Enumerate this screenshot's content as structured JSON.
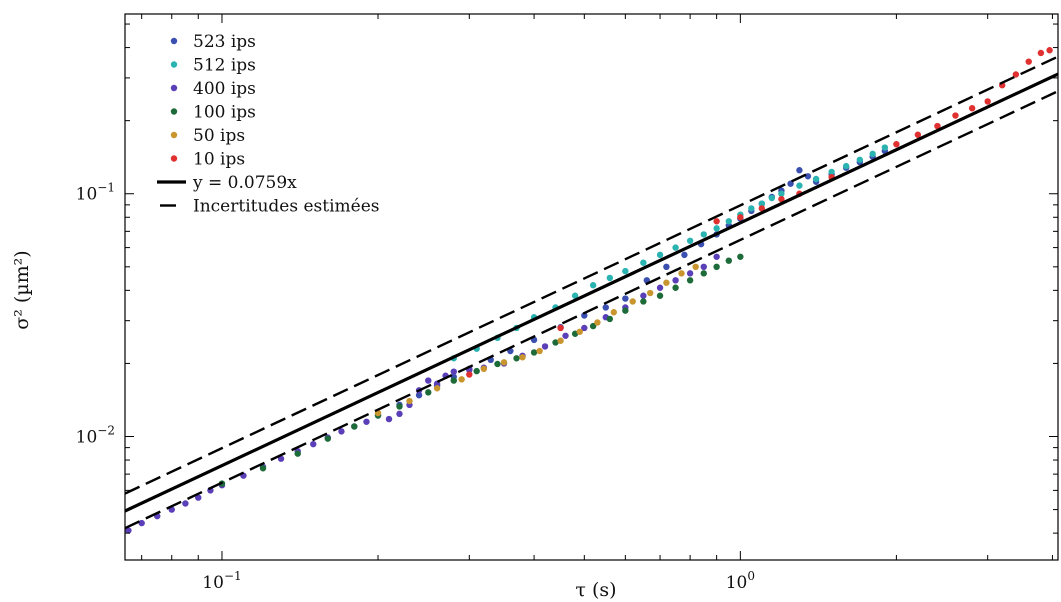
{
  "chart_data": {
    "type": "scatter",
    "title": "",
    "xlabel": "τ (s)",
    "ylabel": "σ² (µm²)",
    "xscale": "log",
    "yscale": "log",
    "xlim": [
      0.065,
      4.1
    ],
    "ylim": [
      0.0031,
      0.55
    ],
    "grid": false,
    "legend_position": "top-left",
    "xticks": [
      {
        "value": 0.1,
        "base": "10",
        "exp": "−1"
      },
      {
        "value": 1.0,
        "base": "10",
        "exp": "0"
      }
    ],
    "yticks": [
      {
        "value": 0.01,
        "base": "10",
        "exp": "−2"
      },
      {
        "value": 0.1,
        "base": "10",
        "exp": "−1"
      }
    ],
    "series": [
      {
        "name": "523 ips",
        "color": "#3a4fb0",
        "x": [
          0.22,
          0.24,
          0.26,
          0.28,
          0.3,
          0.33,
          0.36,
          0.4,
          0.45,
          0.5,
          0.55,
          0.6,
          0.66,
          0.72,
          0.78,
          0.84,
          0.9,
          0.95,
          1.0,
          1.05,
          1.1,
          1.15,
          1.2,
          1.25,
          1.3,
          1.35,
          1.4,
          1.5,
          1.6,
          1.7,
          1.8,
          1.9
        ],
        "y": [
          0.0135,
          0.0148,
          0.0162,
          0.0176,
          0.019,
          0.0207,
          0.0225,
          0.025,
          0.0282,
          0.0315,
          0.034,
          0.037,
          0.044,
          0.05,
          0.056,
          0.062,
          0.068,
          0.074,
          0.079,
          0.085,
          0.091,
          0.097,
          0.103,
          0.11,
          0.125,
          0.118,
          0.112,
          0.12,
          0.128,
          0.135,
          0.142,
          0.15
        ]
      },
      {
        "name": "512 ips",
        "color": "#2ab3b0",
        "x": [
          0.28,
          0.31,
          0.34,
          0.37,
          0.4,
          0.44,
          0.48,
          0.52,
          0.56,
          0.6,
          0.65,
          0.7,
          0.75,
          0.8,
          0.85,
          0.9,
          0.95,
          1.0,
          1.05,
          1.1,
          1.15,
          1.2,
          1.3,
          1.4,
          1.5,
          1.6,
          1.7,
          1.8,
          1.9
        ],
        "y": [
          0.021,
          0.023,
          0.0255,
          0.028,
          0.031,
          0.034,
          0.038,
          0.042,
          0.045,
          0.048,
          0.052,
          0.056,
          0.06,
          0.064,
          0.068,
          0.072,
          0.077,
          0.082,
          0.087,
          0.091,
          0.096,
          0.1,
          0.108,
          0.115,
          0.123,
          0.13,
          0.138,
          0.146,
          0.155
        ]
      },
      {
        "name": "400 ips",
        "color": "#5a3fb8",
        "x": [
          0.066,
          0.07,
          0.075,
          0.08,
          0.085,
          0.09,
          0.095,
          0.1,
          0.11,
          0.12,
          0.13,
          0.14,
          0.15,
          0.16,
          0.17,
          0.18,
          0.19,
          0.2,
          0.21,
          0.22,
          0.23,
          0.24,
          0.25,
          0.26,
          0.27,
          0.28,
          0.3,
          0.32,
          0.35,
          0.38,
          0.42,
          0.46,
          0.5,
          0.55,
          0.6,
          0.65,
          0.7,
          0.75,
          0.8,
          0.85,
          0.9
        ],
        "y": [
          0.0041,
          0.0044,
          0.0047,
          0.005,
          0.0053,
          0.0056,
          0.006,
          0.0063,
          0.0069,
          0.0075,
          0.0081,
          0.0087,
          0.0093,
          0.0099,
          0.0105,
          0.011,
          0.0115,
          0.0122,
          0.0118,
          0.0124,
          0.0135,
          0.0155,
          0.017,
          0.0165,
          0.0178,
          0.0185,
          0.0188,
          0.0192,
          0.02,
          0.0215,
          0.0235,
          0.026,
          0.028,
          0.031,
          0.034,
          0.038,
          0.041,
          0.044,
          0.047,
          0.05,
          0.055
        ]
      },
      {
        "name": "100 ips",
        "color": "#1e6b3a",
        "x": [
          0.1,
          0.12,
          0.14,
          0.16,
          0.18,
          0.2,
          0.22,
          0.25,
          0.28,
          0.31,
          0.34,
          0.37,
          0.4,
          0.44,
          0.48,
          0.52,
          0.56,
          0.6,
          0.65,
          0.7,
          0.75,
          0.8,
          0.85,
          0.9,
          0.95,
          1.0
        ],
        "y": [
          0.0064,
          0.0074,
          0.0085,
          0.0098,
          0.011,
          0.0122,
          0.0133,
          0.0152,
          0.017,
          0.0186,
          0.0199,
          0.021,
          0.0222,
          0.0244,
          0.0265,
          0.0285,
          0.0305,
          0.033,
          0.036,
          0.038,
          0.041,
          0.044,
          0.047,
          0.05,
          0.053,
          0.055
        ]
      },
      {
        "name": "50 ips",
        "color": "#c8952f",
        "x": [
          0.2,
          0.23,
          0.26,
          0.29,
          0.32,
          0.35,
          0.38,
          0.41,
          0.45,
          0.49,
          0.53,
          0.57,
          0.62,
          0.67,
          0.72,
          0.77,
          0.82
        ],
        "y": [
          0.0125,
          0.014,
          0.0158,
          0.0172,
          0.019,
          0.0202,
          0.0212,
          0.0225,
          0.0248,
          0.027,
          0.0295,
          0.0325,
          0.036,
          0.039,
          0.043,
          0.047,
          0.05
        ]
      },
      {
        "name": "10 ips",
        "color": "#e03030",
        "x": [
          0.3,
          0.45,
          0.9,
          1.0,
          1.1,
          1.2,
          1.3,
          1.5,
          2.0,
          2.2,
          2.4,
          2.6,
          2.8,
          3.0,
          3.2,
          3.4,
          3.6,
          3.8,
          3.95
        ],
        "y": [
          0.018,
          0.028,
          0.077,
          0.08,
          0.087,
          0.095,
          0.1,
          0.117,
          0.16,
          0.175,
          0.19,
          0.21,
          0.225,
          0.24,
          0.28,
          0.31,
          0.35,
          0.38,
          0.39
        ]
      }
    ],
    "fit": {
      "label": "y = 0.0759x",
      "slope": 0.0759,
      "color": "#000000"
    },
    "uncertainty": {
      "label": "Incertitudes estimées",
      "factors": [
        1.18,
        0.85
      ]
    }
  }
}
